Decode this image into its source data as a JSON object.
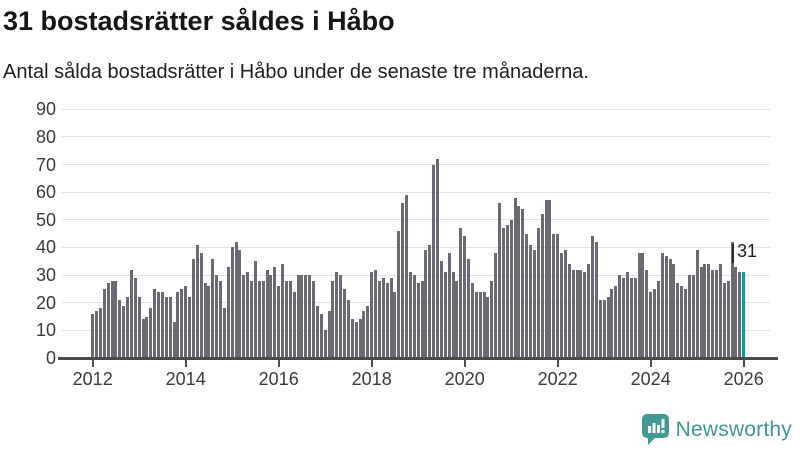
{
  "chart_data": {
    "type": "bar",
    "title": "31 bostadsrätter såldes i Håbo",
    "subtitle": "Antal sålda bostadsrätter i Håbo under de senaste tre månaderna.",
    "x_start": "2012-01",
    "x_end": "2026-01",
    "frequency": "monthly",
    "x_tick_labels": [
      "2012",
      "2014",
      "2016",
      "2018",
      "2020",
      "2022",
      "2024",
      "2026"
    ],
    "y_tick_labels": [
      0,
      10,
      20,
      30,
      40,
      50,
      60,
      70,
      80,
      90
    ],
    "ylim": [
      0,
      90
    ],
    "grid": true,
    "legend": "none",
    "values": [
      16,
      17,
      18,
      25,
      27,
      28,
      28,
      21,
      19,
      22,
      32,
      29,
      22,
      14,
      15,
      18,
      25,
      24,
      24,
      22,
      22,
      13,
      24,
      25,
      26,
      22,
      36,
      41,
      38,
      27,
      26,
      36,
      30,
      28,
      18,
      33,
      40,
      42,
      39,
      30,
      31,
      28,
      35,
      28,
      28,
      32,
      30,
      33,
      26,
      34,
      28,
      28,
      24,
      30,
      30,
      30,
      30,
      28,
      19,
      16,
      10,
      17,
      28,
      31,
      30,
      25,
      21,
      14,
      13,
      14,
      17,
      19,
      31,
      32,
      28,
      29,
      27,
      29,
      24,
      46,
      56,
      59,
      31,
      30,
      27,
      28,
      39,
      41,
      70,
      72,
      35,
      31,
      38,
      31,
      28,
      47,
      44,
      36,
      27,
      24,
      24,
      24,
      22,
      28,
      38,
      56,
      47,
      48,
      50,
      58,
      55,
      54,
      45,
      41,
      39,
      47,
      52,
      57,
      57,
      45,
      45,
      38,
      39,
      34,
      32,
      32,
      32,
      31,
      34,
      44,
      42,
      21,
      21,
      22,
      25,
      26,
      30,
      29,
      31,
      29,
      29,
      38,
      38,
      32,
      24,
      25,
      28,
      38,
      37,
      36,
      34,
      27,
      26,
      25,
      30,
      30,
      39,
      33,
      34,
      34,
      32,
      32,
      34,
      27,
      28,
      42,
      33,
      31,
      31
    ],
    "highlight": {
      "index": 168,
      "month": "2026-01",
      "value": 31,
      "label": "31"
    }
  },
  "colors": {
    "bar": "#6a6a72",
    "highlight": "#00a3a3",
    "grid": "#e1e1e1",
    "axis": "#4b4b4b",
    "tick_text": "#3b3b3b",
    "brand": "#3d968f"
  },
  "branding": {
    "name": "Newsworthy",
    "icon": "newsworthy-chart-bubble-icon"
  }
}
